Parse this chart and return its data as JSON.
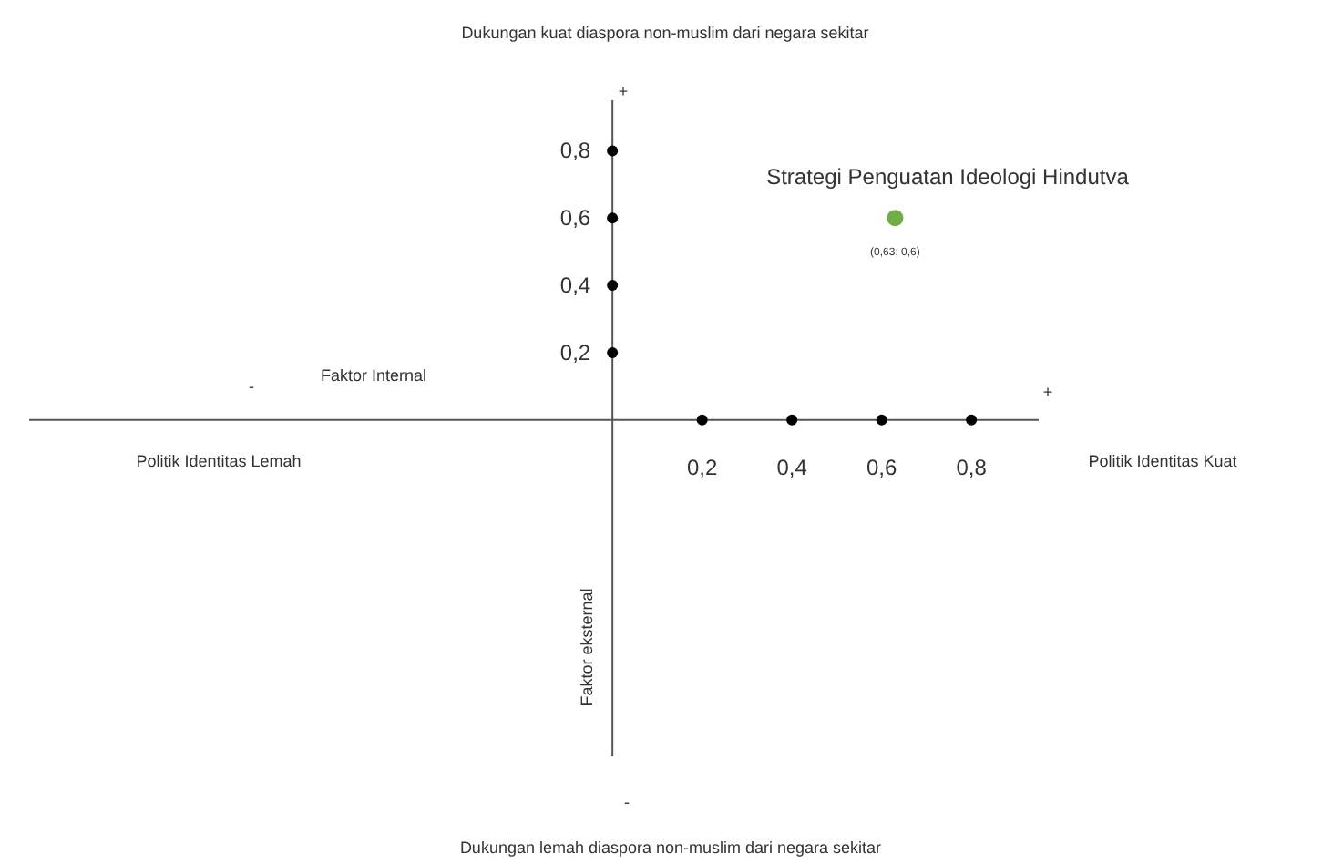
{
  "chart_data": {
    "type": "scatter",
    "annotations": [
      "Dukungan kuat diaspora non-muslim dari negara sekitar",
      "+",
      "Strategi Penguatan Ideologi Hindutva",
      "Faktor Internal",
      "-",
      "+",
      "Politik Identitas Lemah",
      "Politik Identitas Kuat",
      "Faktor eksternal",
      "-",
      "Dukungan lemah diaspora non-muslim dari negara sekitar"
    ],
    "x": [
      0.63
    ],
    "series": [
      {
        "color": "#70ad47",
        "values": [
          0.6
        ],
        "value_labels": [
          "(0,63; 0,6)"
        ]
      }
    ],
    "xlim": [
      -1.3,
      0.95
    ],
    "ylim": [
      -1,
      0.95
    ],
    "xticks": [
      {
        "value": 0.2,
        "label": "0,2"
      },
      {
        "value": 0.4,
        "label": "0,4"
      },
      {
        "value": 0.6,
        "label": "0,6"
      },
      {
        "value": 0.8,
        "label": "0,8"
      }
    ],
    "yticks": [
      {
        "value": 0.2,
        "label": "0,2"
      },
      {
        "value": 0.4,
        "label": "0,4"
      },
      {
        "value": 0.6,
        "label": "0,6"
      },
      {
        "value": 0.8,
        "label": "0,8"
      }
    ],
    "grid": false,
    "legend": false,
    "marker": "circle"
  }
}
